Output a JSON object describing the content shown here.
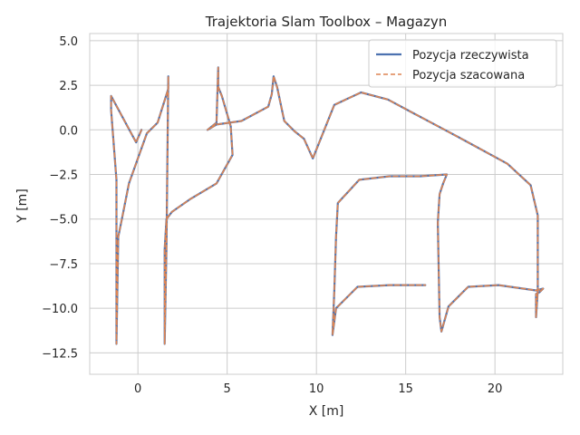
{
  "chart_data": {
    "type": "line",
    "title": "Trajektoria Slam Toolbox – Magazyn",
    "xlabel": "X [m]",
    "ylabel": "Y [m]",
    "xlim": [
      -2.7,
      23.8
    ],
    "ylim": [
      -13.7,
      5.4
    ],
    "xticks": [
      0,
      5,
      10,
      15,
      20
    ],
    "yticks": [
      5.0,
      2.5,
      0.0,
      -2.5,
      -5.0,
      -7.5,
      -10.0,
      -12.5
    ],
    "xtick_labels": [
      "0",
      "5",
      "10",
      "15",
      "20"
    ],
    "ytick_labels": [
      "5.0",
      "2.5",
      "0.0",
      "−2.5",
      "−5.0",
      "−7.5",
      "−10.0",
      "−12.5"
    ],
    "grid": true,
    "legend_position": "top-right",
    "colors": {
      "actual": "#4c72b0",
      "estimated": "#dd8452",
      "grid": "#cccccc",
      "axes": "#cccccc"
    },
    "series": [
      {
        "name": "Pozycja rzeczywista",
        "style": "solid",
        "x": [
          0.2,
          -0.1,
          -1.5,
          -1.5,
          -1.2,
          -1.2,
          -1.2,
          -1.1,
          -0.9,
          -0.5,
          0.5,
          1.1,
          1.7,
          1.7,
          1.6,
          1.5,
          1.5,
          1.6,
          1.9,
          2.9,
          4.4,
          5.3,
          5.2,
          4.7,
          4.5,
          4.5,
          4.4,
          3.9,
          4.4,
          5.8,
          7.3,
          7.5,
          7.6,
          7.8,
          8.2,
          8.8,
          9.3,
          9.8,
          11.0,
          12.5,
          14.0,
          15.5,
          17.0,
          18.5,
          20.7,
          22.0,
          22.4,
          22.4,
          22.3,
          22.3,
          22.5,
          22.7,
          22.3,
          20.2,
          18.5,
          17.4,
          17.0,
          16.9,
          16.8,
          16.9,
          17.1,
          17.3,
          15.8,
          14.1,
          12.4,
          11.2,
          11.1,
          11.0,
          10.9,
          11.1,
          12.3,
          14.1,
          16.0,
          16.1
        ],
        "y": [
          0.0,
          -0.7,
          1.9,
          1.1,
          -2.8,
          -6.5,
          -12.0,
          -6.0,
          -5.0,
          -3.0,
          -0.2,
          0.4,
          2.3,
          3.0,
          -6.5,
          -12.0,
          -6.7,
          -5.0,
          -4.6,
          -3.9,
          -3.0,
          -1.4,
          0.2,
          1.9,
          2.4,
          3.5,
          0.4,
          0.0,
          0.3,
          0.5,
          1.3,
          2.0,
          3.0,
          2.4,
          0.5,
          -0.1,
          -0.5,
          -1.6,
          1.4,
          2.1,
          1.7,
          0.9,
          0.1,
          -0.7,
          -1.9,
          -3.1,
          -4.8,
          -9.0,
          -10.5,
          -9.2,
          -9.1,
          -8.9,
          -9.0,
          -8.7,
          -8.8,
          -9.9,
          -11.3,
          -10.5,
          -5.2,
          -3.6,
          -3.0,
          -2.5,
          -2.6,
          -2.6,
          -2.8,
          -4.1,
          -6.0,
          -9.0,
          -11.5,
          -10.0,
          -8.8,
          -8.7,
          -8.7,
          -8.7
        ]
      },
      {
        "name": "Pozycja szacowana",
        "style": "dashed",
        "x": [
          0.2,
          -0.1,
          -1.5,
          -1.5,
          -1.2,
          -1.2,
          -1.2,
          -1.1,
          -0.9,
          -0.5,
          0.5,
          1.1,
          1.7,
          1.7,
          1.6,
          1.5,
          1.5,
          1.6,
          1.9,
          2.9,
          4.4,
          5.3,
          5.2,
          4.7,
          4.5,
          4.5,
          4.4,
          3.9,
          4.4,
          5.8,
          7.3,
          7.5,
          7.6,
          7.8,
          8.2,
          8.8,
          9.3,
          9.8,
          11.0,
          12.5,
          14.0,
          15.5,
          17.0,
          18.5,
          20.7,
          22.0,
          22.4,
          22.4,
          22.3,
          22.3,
          22.5,
          22.7,
          22.3,
          20.2,
          18.5,
          17.4,
          17.0,
          16.9,
          16.8,
          16.9,
          17.1,
          17.3,
          15.8,
          14.1,
          12.4,
          11.2,
          11.1,
          11.0,
          10.9,
          11.1,
          12.3,
          14.1,
          16.0,
          16.1
        ],
        "y": [
          0.0,
          -0.7,
          1.9,
          1.1,
          -2.8,
          -6.5,
          -12.0,
          -6.0,
          -5.0,
          -3.0,
          -0.2,
          0.4,
          2.3,
          3.0,
          -6.5,
          -12.0,
          -6.7,
          -5.0,
          -4.6,
          -3.9,
          -3.0,
          -1.4,
          0.2,
          1.9,
          2.4,
          3.5,
          0.4,
          0.0,
          0.3,
          0.5,
          1.3,
          2.0,
          3.0,
          2.4,
          0.5,
          -0.1,
          -0.5,
          -1.6,
          1.4,
          2.1,
          1.7,
          0.9,
          0.1,
          -0.7,
          -1.9,
          -3.1,
          -4.8,
          -9.0,
          -10.5,
          -9.2,
          -9.1,
          -8.9,
          -9.0,
          -8.7,
          -8.8,
          -9.9,
          -11.3,
          -10.5,
          -5.2,
          -3.6,
          -3.0,
          -2.5,
          -2.6,
          -2.6,
          -2.8,
          -4.1,
          -6.0,
          -9.0,
          -11.5,
          -10.0,
          -8.8,
          -8.7,
          -8.7,
          -8.7
        ]
      }
    ]
  }
}
